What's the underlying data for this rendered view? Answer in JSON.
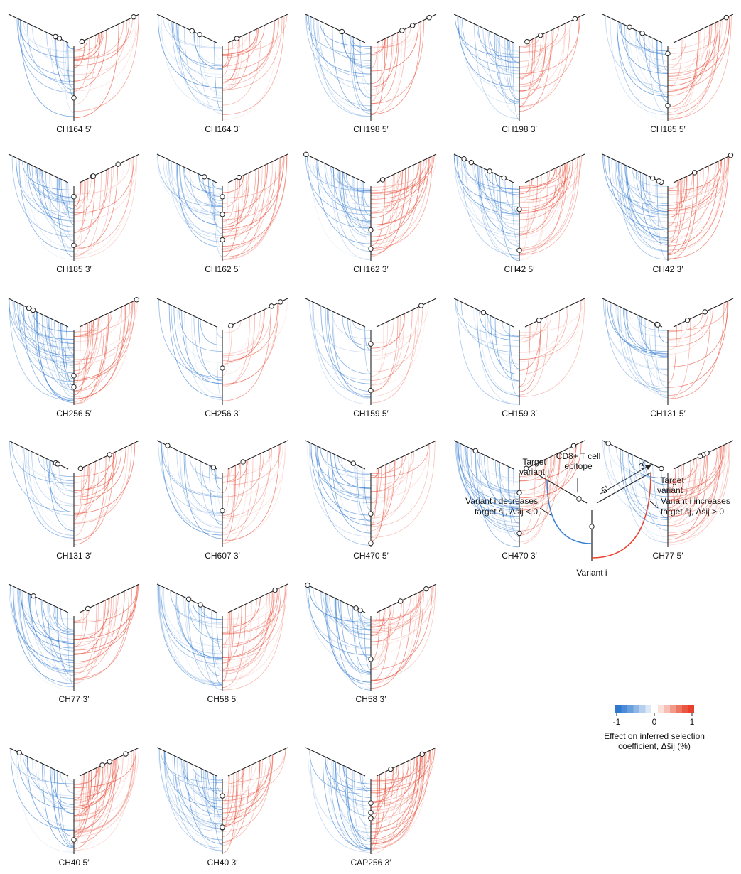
{
  "panels": [
    {
      "label": "CH164 5′"
    },
    {
      "label": "CH164 3′"
    },
    {
      "label": "CH198 5′"
    },
    {
      "label": "CH198 3′"
    },
    {
      "label": "CH185 5′"
    },
    {
      "label": "CH185 3′"
    },
    {
      "label": "CH162 5′"
    },
    {
      "label": "CH162 3′"
    },
    {
      "label": "CH42 5′"
    },
    {
      "label": "CH42 3′"
    },
    {
      "label": "CH256 5′"
    },
    {
      "label": "CH256 3′"
    },
    {
      "label": "CH159 5′"
    },
    {
      "label": "CH159 3′"
    },
    {
      "label": "CH131 5′"
    },
    {
      "label": "CH131 3′"
    },
    {
      "label": "CH607 3′"
    },
    {
      "label": "CH470 5′"
    },
    {
      "label": "CH470 3′"
    },
    {
      "label": "CH77 5′"
    },
    {
      "label": "CH77 3′"
    },
    {
      "label": "CH58 5′"
    },
    {
      "label": "CH58 3′"
    },
    {
      "label": "CH40 5′"
    },
    {
      "label": "CH40 3′"
    },
    {
      "label": "CAP256 3′"
    }
  ],
  "legend": {
    "target_left": [
      "Target",
      "variant j"
    ],
    "epitope": [
      "CD8+ T cell",
      "epitope"
    ],
    "target_right": [
      "Target",
      "variant j"
    ],
    "five_prime": "5′",
    "three_prime": "3′",
    "decreases": [
      "Variant i decreases",
      "target ŝj, Δŝij < 0"
    ],
    "increases": [
      "Variant i increases",
      "target ŝj, Δŝij > 0"
    ],
    "variant_i": "Variant i"
  },
  "colorbar": {
    "ticks": [
      -1,
      0,
      1
    ],
    "label": [
      "Effect on inferred selection",
      "coefficient, Δŝij (%)"
    ]
  }
}
